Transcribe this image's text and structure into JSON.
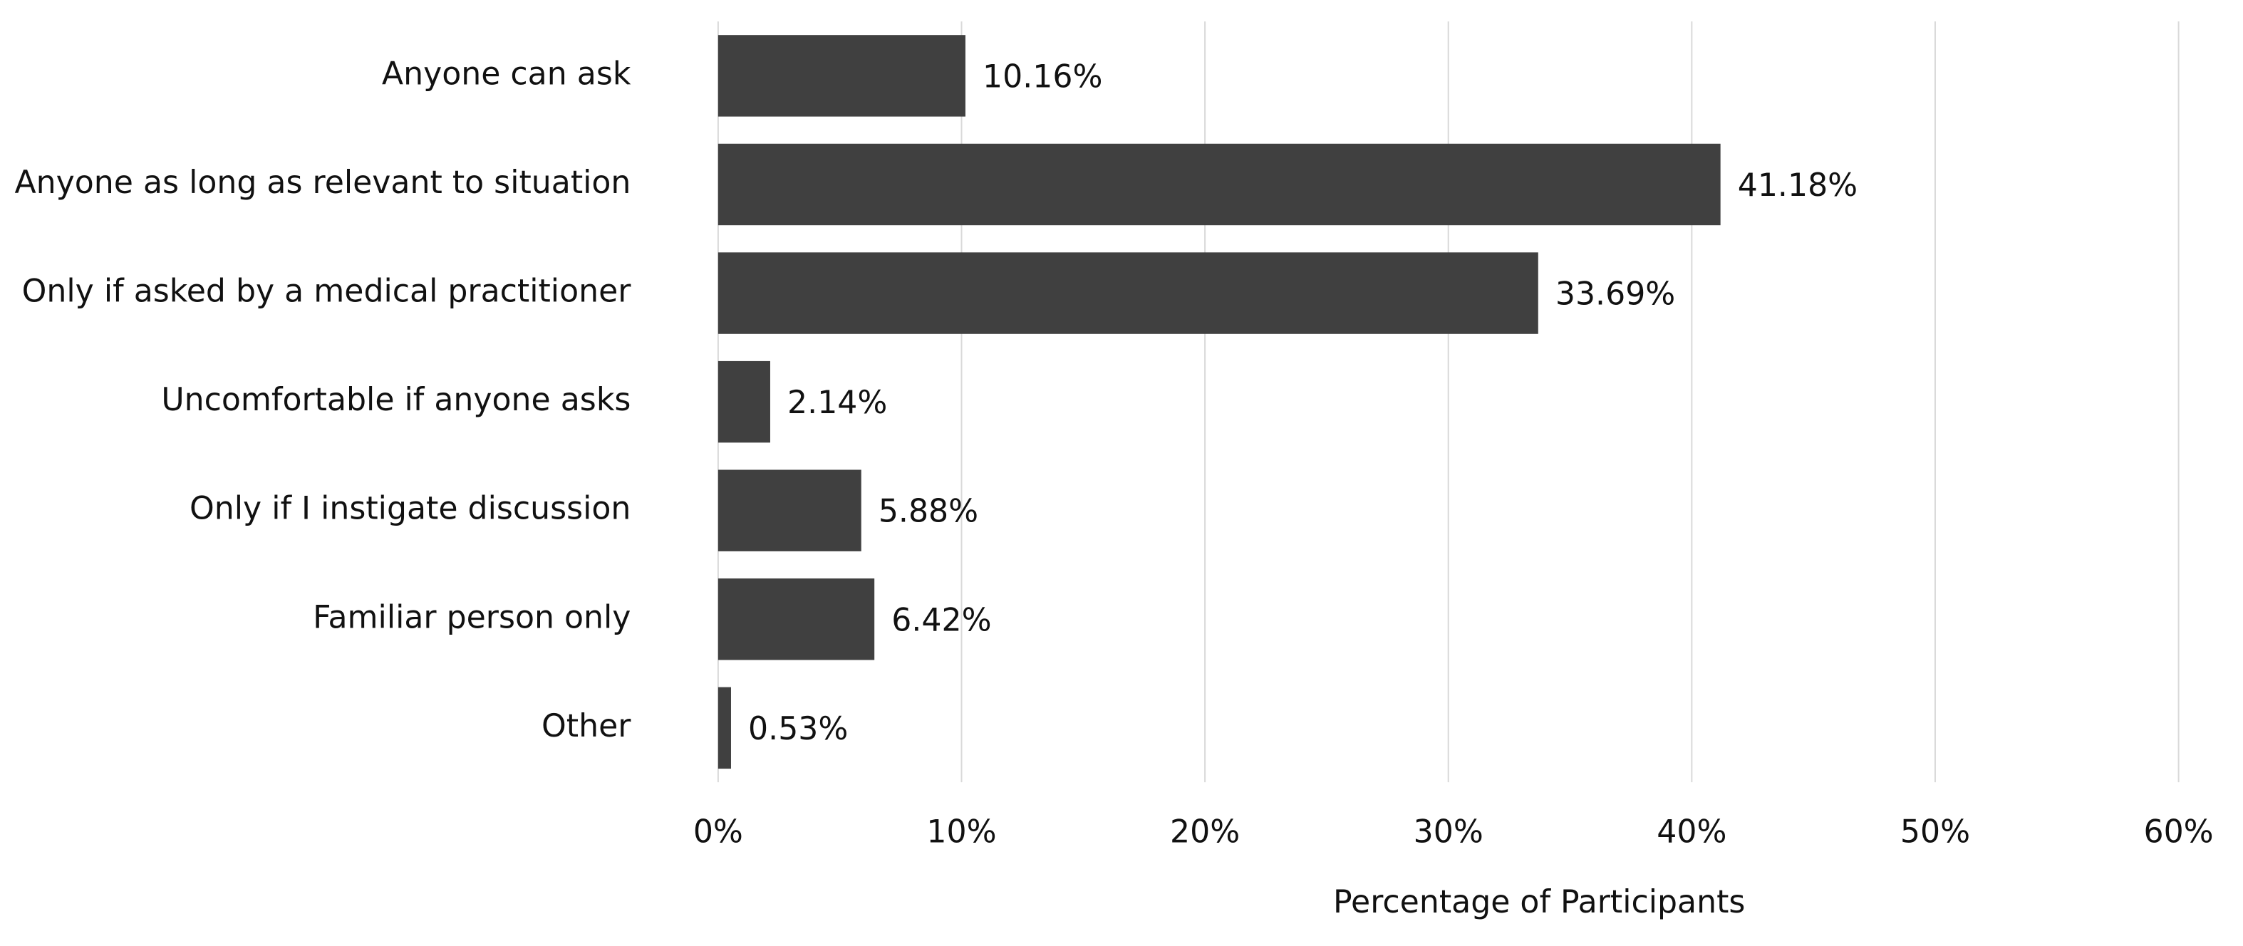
{
  "chart_data": {
    "type": "bar",
    "orientation": "horizontal",
    "x_label": "Percentage of Participants",
    "categories": [
      "Anyone can ask",
      "Anyone as long as relevant to situation",
      "Only if asked by a medical practitioner",
      "Uncomfortable if anyone asks",
      "Only if I instigate discussion",
      "Familiar person only",
      "Other"
    ],
    "values": [
      10.16,
      41.18,
      33.69,
      2.14,
      5.88,
      6.42,
      0.53
    ],
    "value_labels": [
      "10.16%",
      "41.18%",
      "33.69%",
      "2.14%",
      "5.88%",
      "6.42%",
      "0.53%"
    ],
    "color": "#404040",
    "xlim": [
      0,
      60
    ],
    "xticks": [
      {
        "value": 0,
        "label": "0%"
      },
      {
        "value": 10,
        "label": "10%"
      },
      {
        "value": 20,
        "label": "20%"
      },
      {
        "value": 30,
        "label": "30%"
      },
      {
        "value": 40,
        "label": "40%"
      },
      {
        "value": 50,
        "label": "50%"
      },
      {
        "value": 60,
        "label": "60%"
      }
    ],
    "grid": true
  }
}
